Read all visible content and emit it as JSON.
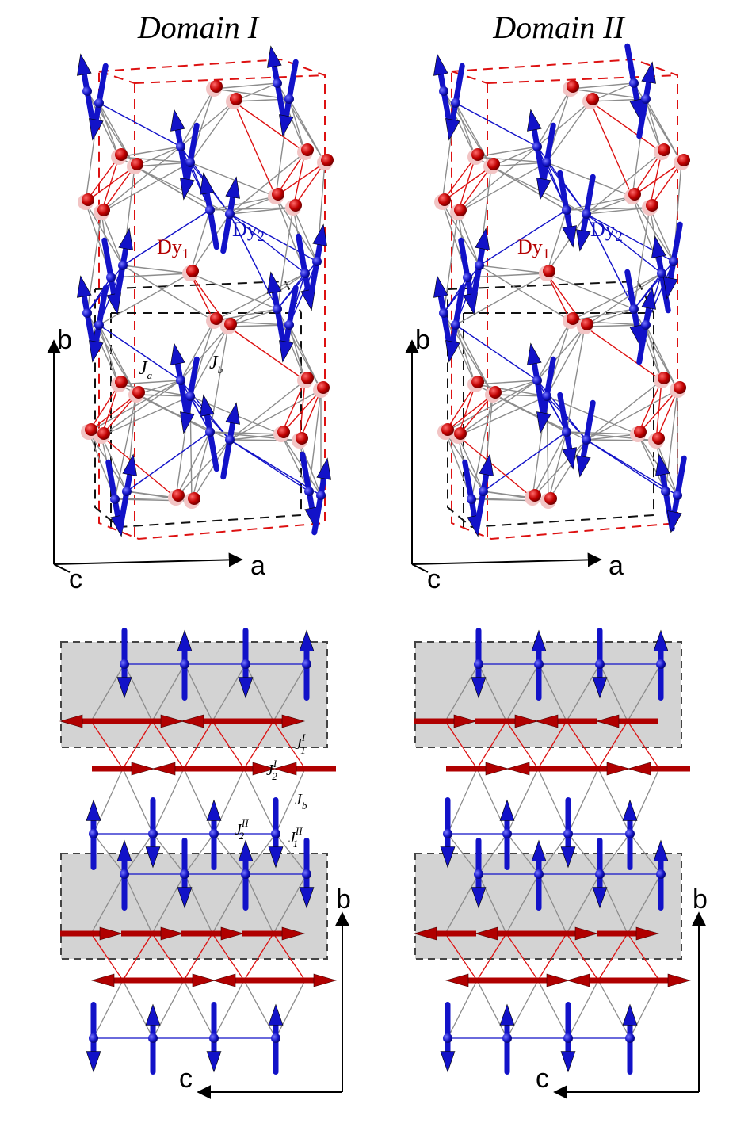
{
  "panels": [
    {
      "id": "domain-1",
      "title": "Domain I"
    },
    {
      "id": "domain-2",
      "title": "Domain II"
    }
  ],
  "labels": {
    "dy1": "Dy",
    "dy1_sub": "1",
    "dy2": "Dy",
    "dy2_sub": "2",
    "ja": "J",
    "ja_sub": "a",
    "jb": "J",
    "jb_sub": "b",
    "j1I": "J",
    "j1I_sub": "1",
    "j1I_sup": "I",
    "j2I": "J",
    "j2I_sub": "2",
    "j2I_sup": "I",
    "jb2": "J",
    "jb2_sub": "b",
    "j2II": "J",
    "j2II_sub": "2",
    "j2II_sup": "II",
    "j1II": "J",
    "j1II_sub": "1",
    "j1II_sup": "II"
  },
  "axes": {
    "top": {
      "vertical": "b",
      "horizontal": "a",
      "depth": "c"
    },
    "bottom": {
      "vertical": "b",
      "horizontal": "c"
    }
  },
  "colors": {
    "dy1": "#b00000",
    "dy1_glow": "#f2c4c4",
    "dy2": "#1212c8",
    "cell_red": "#dd1111",
    "cell_black": "#111111",
    "bond_gray": "#8c8c8c",
    "shade": "#d3d3d3"
  }
}
